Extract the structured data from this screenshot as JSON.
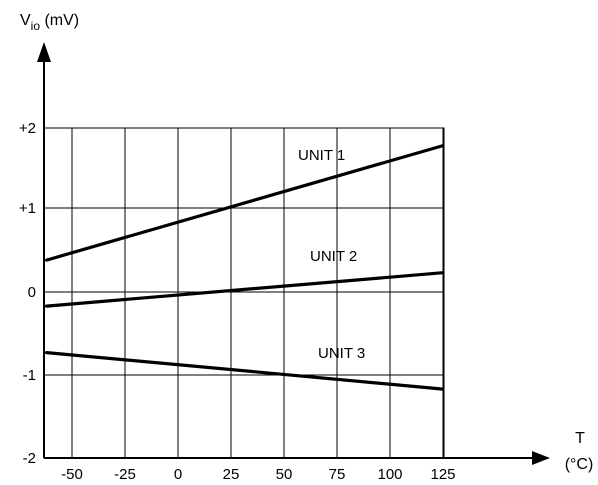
{
  "chart_data": {
    "type": "line",
    "ylabel": "V",
    "ylabel_sub": "io",
    "ylabel_unit": " (mV)",
    "xlabel": "T",
    "xlabel_unit": "(°C)",
    "x_ticks": [
      -50,
      -25,
      0,
      25,
      50,
      75,
      100,
      125
    ],
    "x_tick_labels": [
      "-50",
      "-25",
      "0",
      "25",
      "50",
      "75",
      "100",
      "125"
    ],
    "y_ticks": [
      2,
      1,
      0,
      -1,
      -2
    ],
    "y_tick_labels": [
      "+2",
      "+1",
      "0",
      "-1",
      "-2"
    ],
    "xlim": [
      -62,
      125
    ],
    "ylim": [
      -2,
      2
    ],
    "grid": true,
    "series": [
      {
        "name": "UNIT 1",
        "x": [
          -62,
          125
        ],
        "y": [
          0.38,
          1.78
        ]
      },
      {
        "name": "UNIT 2",
        "x": [
          -62,
          125
        ],
        "y": [
          -0.17,
          0.23
        ]
      },
      {
        "name": "UNIT 3",
        "x": [
          -62,
          125
        ],
        "y": [
          -0.73,
          -1.17
        ]
      }
    ],
    "line_color": "#000000"
  }
}
